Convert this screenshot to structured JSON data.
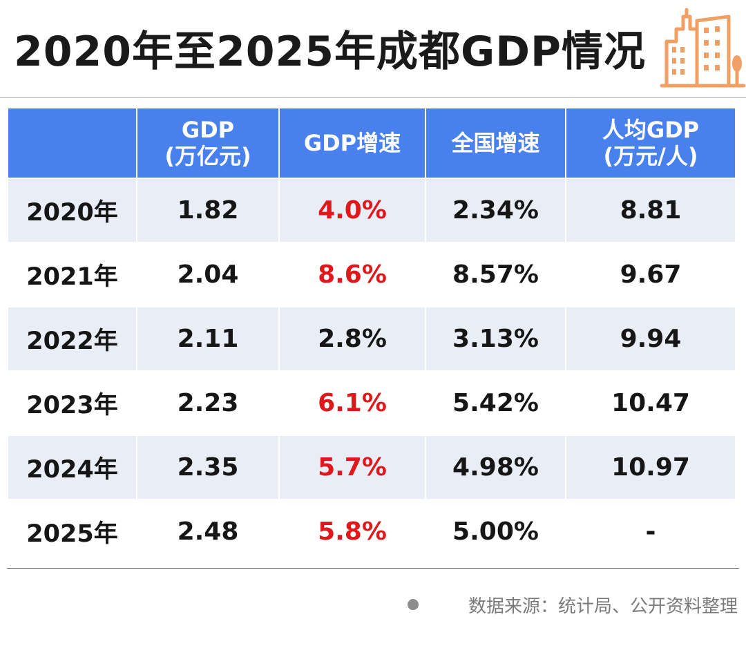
{
  "title": "2020年至2025年成都GDP情况",
  "icon": "building-icon",
  "colors": {
    "header_bg": "#4880ee",
    "header_text": "#ffffff",
    "shaded_row": "#e9edf6",
    "highlight": "#e0181b",
    "icon_orange": "#f0a064"
  },
  "table": {
    "headers": [
      {
        "line1": "",
        "line2": ""
      },
      {
        "line1": "GDP",
        "line2": "(万亿元)"
      },
      {
        "line1": "GDP增速",
        "line2": ""
      },
      {
        "line1": "全国增速",
        "line2": ""
      },
      {
        "line1": "人均GDP",
        "line2": "(万元/人)"
      }
    ],
    "rows": [
      {
        "year": "2020年",
        "gdp": "1.82",
        "gdp_growth": "4.0%",
        "national_growth": "2.34%",
        "per_capita": "8.81",
        "highlight_growth": true
      },
      {
        "year": "2021年",
        "gdp": "2.04",
        "gdp_growth": "8.6%",
        "national_growth": "8.57%",
        "per_capita": "9.67",
        "highlight_growth": true
      },
      {
        "year": "2022年",
        "gdp": "2.11",
        "gdp_growth": "2.8%",
        "national_growth": "3.13%",
        "per_capita": "9.94",
        "highlight_growth": false
      },
      {
        "year": "2023年",
        "gdp": "2.23",
        "gdp_growth": "6.1%",
        "national_growth": "5.42%",
        "per_capita": "10.47",
        "highlight_growth": true
      },
      {
        "year": "2024年",
        "gdp": "2.35",
        "gdp_growth": "5.7%",
        "national_growth": "4.98%",
        "per_capita": "10.97",
        "highlight_growth": true
      },
      {
        "year": "2025年",
        "gdp": "2.48",
        "gdp_growth": "5.8%",
        "national_growth": "5.00%",
        "per_capita": "-",
        "highlight_growth": true
      }
    ]
  },
  "source": "数据来源：统计局、公开资料整理"
}
